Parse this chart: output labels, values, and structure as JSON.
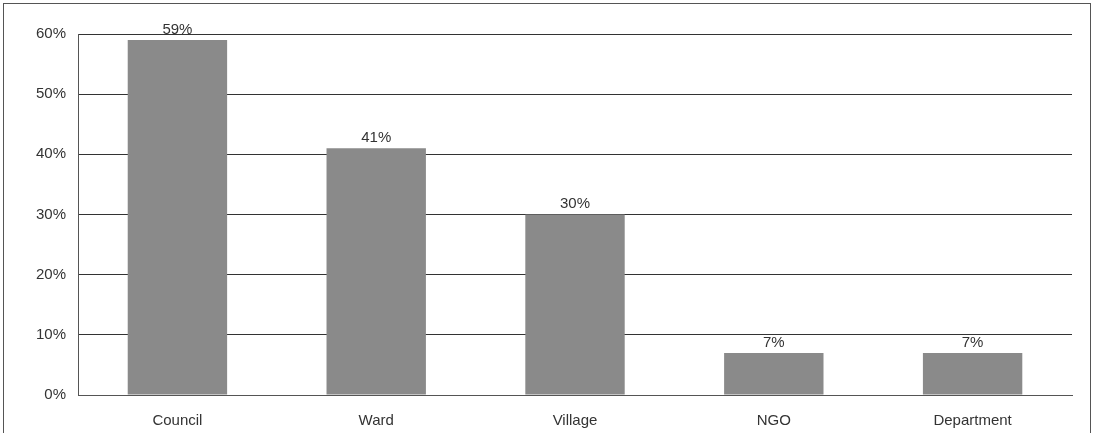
{
  "chart_data": {
    "type": "bar",
    "categories": [
      "Council",
      "Ward",
      "Village",
      "NGO",
      "Department"
    ],
    "values": [
      59,
      41,
      30,
      7,
      7
    ],
    "value_labels": [
      "59%",
      "41%",
      "30%",
      "7%",
      "7%"
    ],
    "color": "#8a8a8a",
    "ylim": [
      0,
      60
    ],
    "yticks": [
      {
        "value": 0,
        "label": "0%"
      },
      {
        "value": 10,
        "label": "10%"
      },
      {
        "value": 20,
        "label": "20%"
      },
      {
        "value": 30,
        "label": "30%"
      },
      {
        "value": 40,
        "label": "40%"
      },
      {
        "value": 50,
        "label": "50%"
      },
      {
        "value": 60,
        "label": "60%"
      }
    ],
    "grid": "y",
    "legend": false
  }
}
